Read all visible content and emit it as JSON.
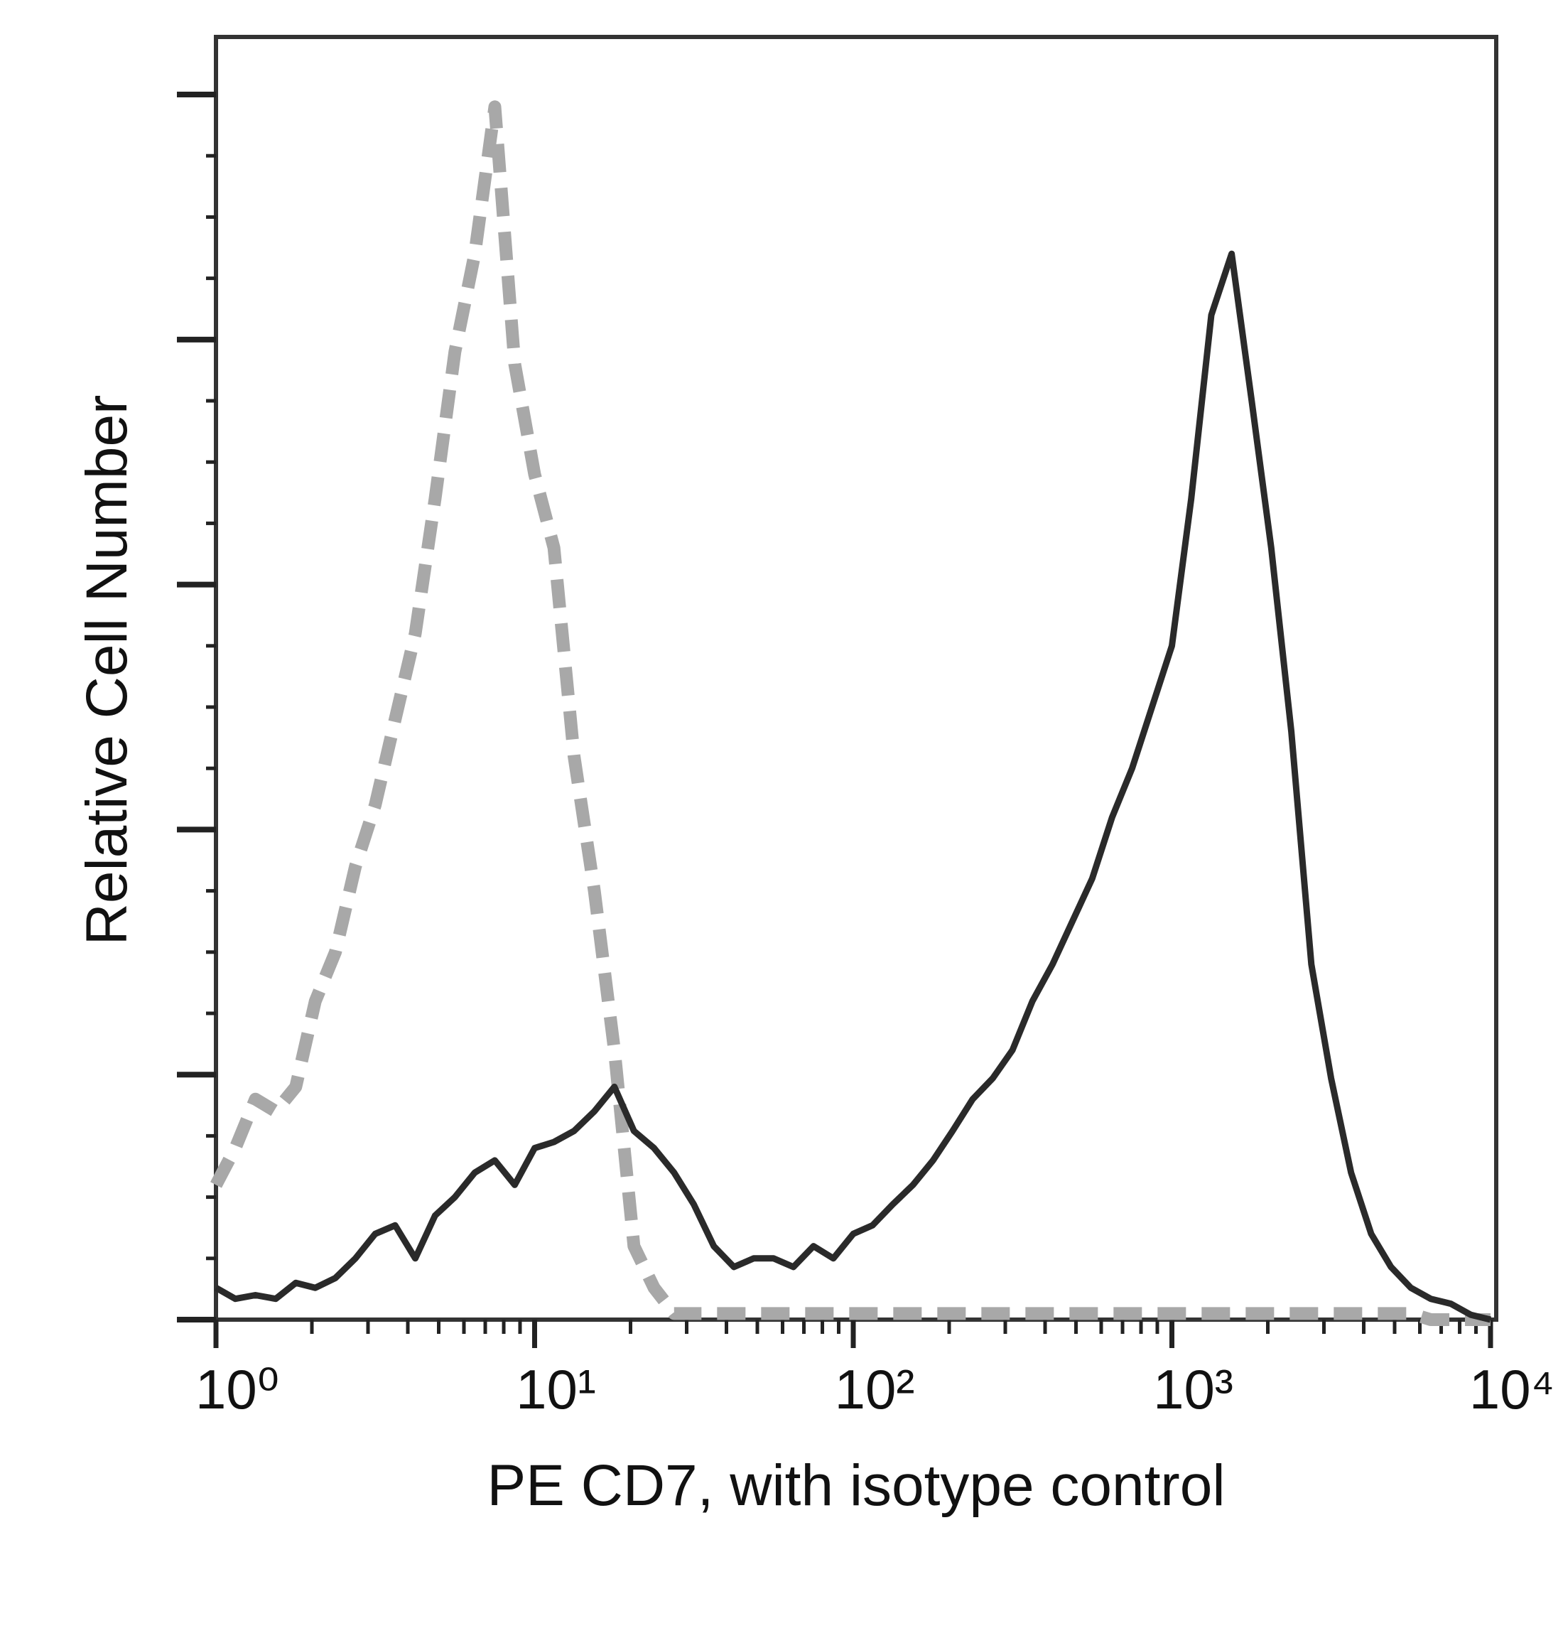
{
  "chart_data": {
    "type": "line",
    "x_label": "PE CD7, with isotype control",
    "y_label": "Relative Cell Number",
    "x_scale": "log",
    "xlim": [
      1,
      10000
    ],
    "xticks": [
      {
        "value": 1,
        "label": "10⁰"
      },
      {
        "value": 10,
        "label": "10¹"
      },
      {
        "value": 100,
        "label": "10²"
      },
      {
        "value": 1000,
        "label": "10³"
      },
      {
        "value": 10000,
        "label": "10⁴"
      }
    ],
    "xminorticks": [
      2,
      3,
      4,
      5,
      6,
      7,
      8,
      9,
      20,
      30,
      40,
      50,
      60,
      70,
      80,
      90,
      200,
      300,
      400,
      500,
      600,
      700,
      800,
      900,
      2000,
      3000,
      4000,
      5000,
      6000,
      7000,
      8000,
      9000
    ],
    "ylim": [
      0,
      104.7
    ],
    "yticks": [
      0,
      5,
      10,
      15,
      20,
      25,
      30,
      35,
      40,
      45,
      50,
      55,
      60,
      65,
      70,
      75,
      80,
      85,
      90,
      95,
      100
    ],
    "x": [
      1,
      1.15,
      1.33,
      1.54,
      1.78,
      2.05,
      2.37,
      2.74,
      3.16,
      3.65,
      4.22,
      4.87,
      5.62,
      6.49,
      7.5,
      8.66,
      10,
      11.5,
      13.3,
      15.4,
      17.8,
      20.5,
      23.7,
      27.4,
      31.6,
      36.5,
      42.2,
      48.7,
      56.2,
      64.9,
      75,
      86.6,
      100,
      115,
      133,
      154,
      178,
      205,
      237,
      274,
      316,
      365,
      422,
      487,
      562,
      649,
      750,
      866,
      1000,
      1150,
      1330,
      1540,
      1780,
      2050,
      2370,
      2740,
      3160,
      3650,
      4220,
      4870,
      5620,
      6490,
      7500,
      8660,
      10000
    ],
    "series": [
      {
        "color": "#a8a8a8",
        "dashed": true,
        "values": [
          11,
          14,
          18,
          17,
          19,
          26,
          30,
          37,
          42,
          49,
          56,
          67,
          79,
          87,
          99,
          78,
          69,
          63,
          46,
          35,
          22,
          6,
          2.6,
          0.5,
          0.5,
          0.5,
          0.5,
          0.5,
          0.5,
          0.5,
          0.5,
          0.5,
          0.5,
          0.5,
          0.5,
          0.5,
          0.5,
          0.5,
          0.5,
          0.5,
          0.5,
          0.5,
          0.5,
          0.5,
          0.5,
          0.5,
          0.5,
          0.5,
          0.5,
          0.5,
          0.5,
          0.5,
          0.5,
          0.5,
          0.5,
          0.5,
          0.5,
          0.5,
          0.5,
          0.5,
          0.5,
          0,
          0,
          0,
          0
        ]
      },
      {
        "color": "#2a2a2a",
        "dashed": false,
        "values": [
          2.6,
          1.7,
          2,
          1.7,
          3,
          2.6,
          3.4,
          5,
          7,
          7.7,
          5,
          8.5,
          10,
          12,
          13,
          11,
          14,
          14.5,
          15.4,
          17,
          19,
          15.4,
          14,
          12,
          9.4,
          6,
          4.3,
          5,
          5,
          4.3,
          6,
          5,
          7,
          7.7,
          9.4,
          11,
          13,
          15.4,
          18,
          19.7,
          22,
          26,
          29,
          32.5,
          36,
          41,
          45,
          50,
          55,
          67,
          82,
          87,
          75,
          63,
          48,
          29,
          19.7,
          12,
          7,
          4.3,
          2.6,
          1.7,
          1.3,
          0.4,
          0
        ]
      }
    ]
  }
}
